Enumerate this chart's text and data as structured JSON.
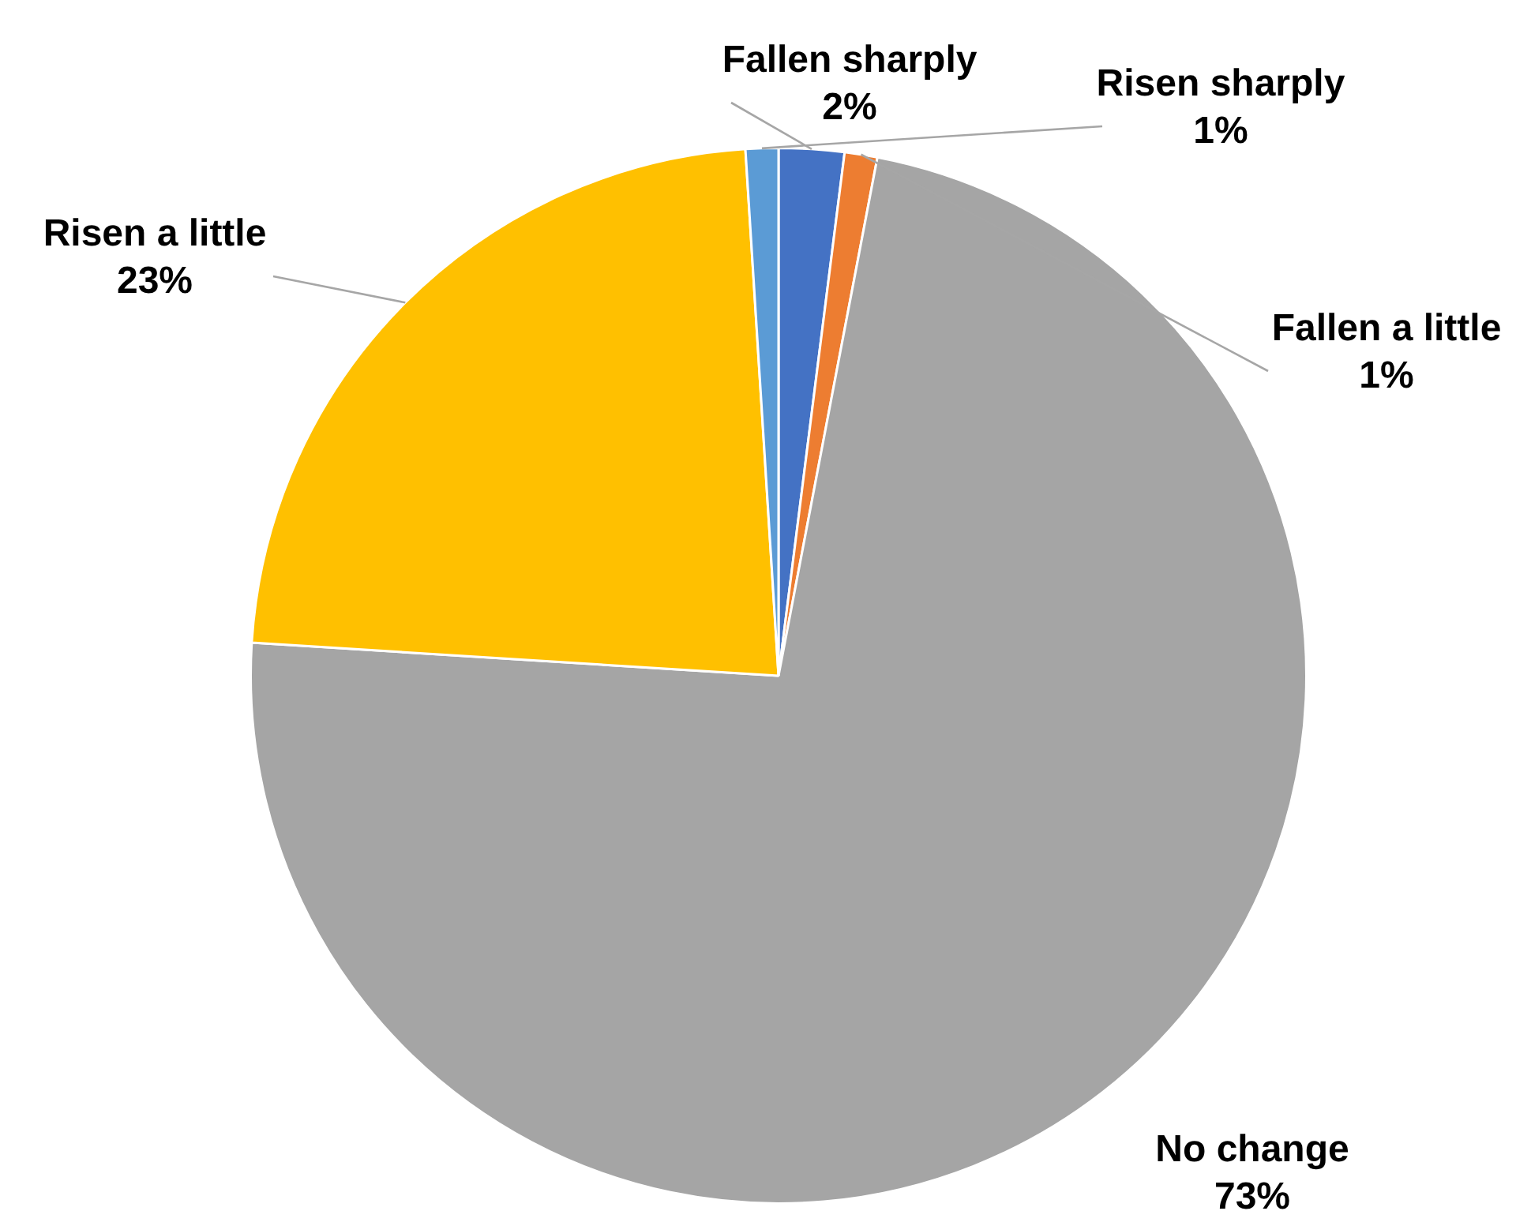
{
  "chart_data": {
    "type": "pie",
    "categories": [
      "Fallen sharply",
      "Fallen a little",
      "No change",
      "Risen a little",
      "Risen sharply"
    ],
    "values": [
      2,
      1,
      73,
      23,
      1
    ],
    "colors": [
      "#4472c4",
      "#ed7d31",
      "#a5a5a5",
      "#ffc000",
      "#5b9bd5"
    ],
    "value_labels": [
      "2%",
      "1%",
      "73%",
      "23%",
      "1%"
    ],
    "legend": false
  }
}
